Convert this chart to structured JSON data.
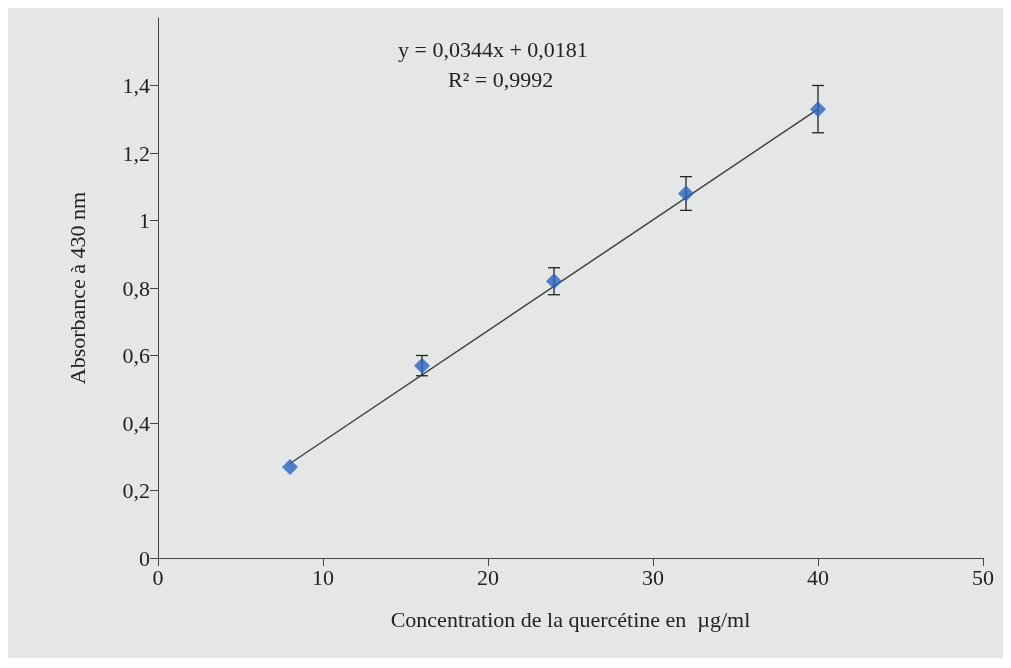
{
  "chart_data": {
    "type": "scatter",
    "xlabel": "Concentration de la quercétine en  µg/ml",
    "ylabel": "Absorbance à 430 nm",
    "annotations": [
      "y = 0,0344x + 0,0181",
      "R² = 0,9992"
    ],
    "xlim": [
      0,
      50
    ],
    "xticks": [
      0,
      10,
      20,
      30,
      40,
      50
    ],
    "ylim": [
      0,
      1.6
    ],
    "yticks": [
      0,
      {
        "value": 0.2,
        "label": "0,2"
      },
      {
        "value": 0.4,
        "label": "0,4"
      },
      {
        "value": 0.6,
        "label": "0,6"
      },
      {
        "value": 0.8,
        "label": "0,8"
      },
      1,
      {
        "value": 1.2,
        "label": "1,2"
      },
      {
        "value": 1.4,
        "label": "1,4"
      }
    ],
    "grid": false,
    "marker": "diamond",
    "series": [
      {
        "color": "#2a64c0",
        "x": [
          8,
          16,
          24,
          32,
          40
        ],
        "values": [
          0.27,
          0.57,
          0.82,
          1.08,
          1.33
        ],
        "errors": [
          null,
          0.03,
          0.04,
          0.05,
          0.07
        ]
      },
      {
        "type": "line",
        "color": "#404040",
        "x": [
          8,
          40
        ],
        "values": [
          0.28,
          1.33
        ],
        "marker": "none",
        "line_style": "solid"
      }
    ]
  }
}
